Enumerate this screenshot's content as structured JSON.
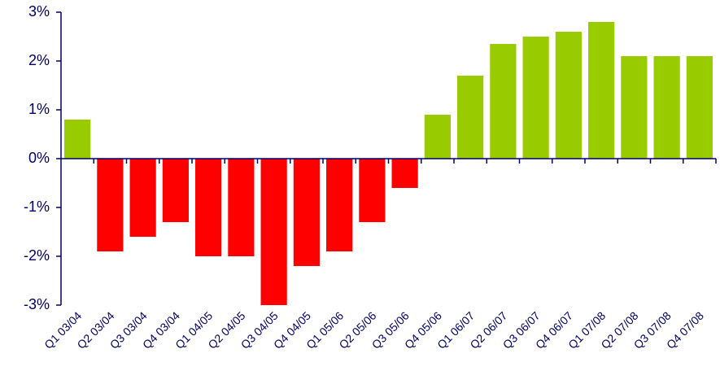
{
  "chart_data": {
    "type": "bar",
    "categories": [
      "Q1 03/04",
      "Q2 03/04",
      "Q3 03/04",
      "Q4 03/04",
      "Q1 04/05",
      "Q2 04/05",
      "Q3 04/05",
      "Q4 04/05",
      "Q1 05/06",
      "Q2 05/06",
      "Q3 05/06",
      "Q4 05/06",
      "Q1 06/07",
      "Q2 06/07",
      "Q3 06/07",
      "Q4 06/07",
      "Q1 07/08",
      "Q2 07/08",
      "Q3 07/08",
      "Q4 07/08"
    ],
    "values": [
      0.8,
      -1.9,
      -1.6,
      -1.3,
      -2.0,
      -2.0,
      -3.0,
      -2.2,
      -1.9,
      -1.3,
      -0.6,
      0.9,
      1.7,
      2.35,
      2.5,
      2.6,
      2.8,
      2.1,
      2.1,
      2.1
    ],
    "positive_color": "#99cc00",
    "negative_color": "#ff0000",
    "ylim": [
      -3,
      3
    ],
    "yticks": [
      {
        "value": -3,
        "label": "-3%"
      },
      {
        "value": -2,
        "label": "-2%"
      },
      {
        "value": -1,
        "label": "-1%"
      },
      {
        "value": 0,
        "label": "0%"
      },
      {
        "value": 1,
        "label": "1%"
      },
      {
        "value": 2,
        "label": "2%"
      },
      {
        "value": 3,
        "label": "3%"
      }
    ],
    "grid": false
  }
}
